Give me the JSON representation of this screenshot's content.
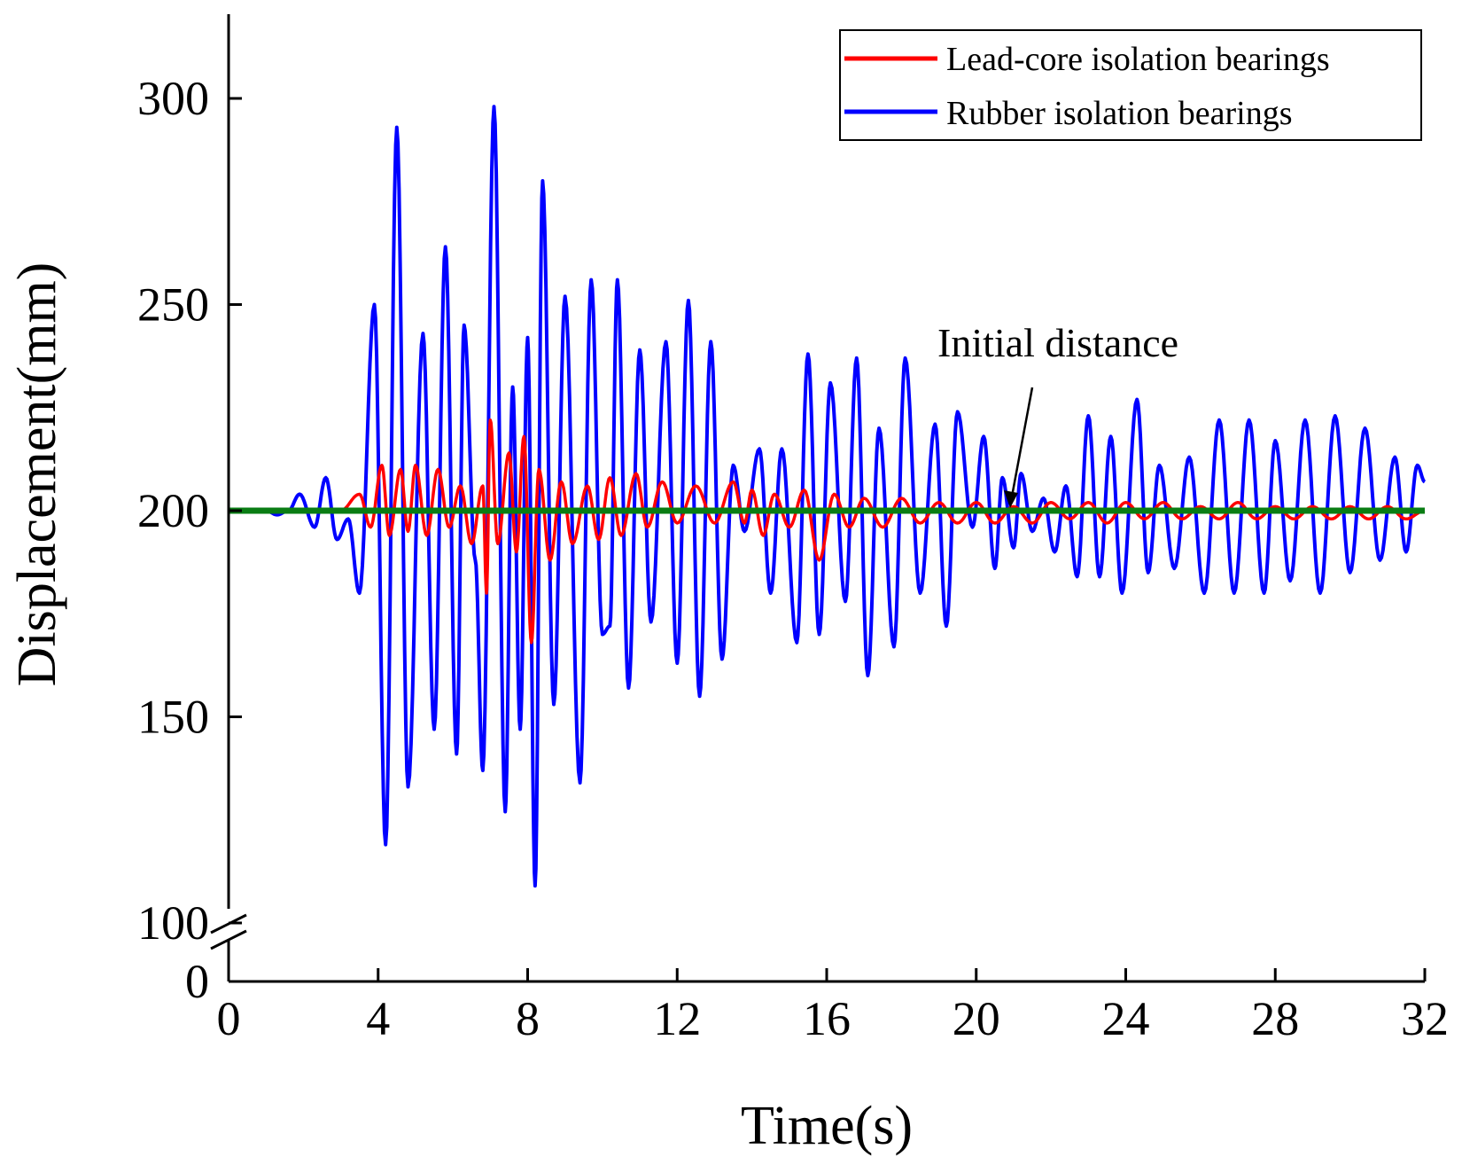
{
  "chart_data": {
    "type": "line",
    "title": "",
    "xlabel": "Time(s)",
    "ylabel": "Displacement(mm)",
    "xlim": [
      0,
      32
    ],
    "ylim_upper": [
      100,
      320
    ],
    "ylim_lower": [
      0,
      100
    ],
    "axis_break": "100 to 0",
    "x_ticks": [
      0,
      4,
      8,
      12,
      16,
      20,
      24,
      28,
      32
    ],
    "y_ticks": [
      300,
      250,
      200,
      150,
      100,
      0
    ],
    "x_tick_labels": [
      "0",
      "4",
      "8",
      "12",
      "16",
      "20",
      "24",
      "28",
      "32"
    ],
    "y_tick_labels": [
      "300",
      "250",
      "200",
      "150",
      "100",
      "0"
    ],
    "legend_position": "top-right",
    "series": [
      {
        "name": "Lead-core isolation bearings",
        "color": "#ff0000",
        "extremes": [
          [
            0.0,
            200
          ],
          [
            3.0,
            200
          ],
          [
            3.5,
            204
          ],
          [
            3.8,
            196
          ],
          [
            4.1,
            211
          ],
          [
            4.3,
            194
          ],
          [
            4.6,
            210
          ],
          [
            4.8,
            195
          ],
          [
            5.0,
            211
          ],
          [
            5.3,
            194
          ],
          [
            5.6,
            210
          ],
          [
            5.9,
            196
          ],
          [
            6.2,
            206
          ],
          [
            6.5,
            192
          ],
          [
            6.8,
            206
          ],
          [
            6.9,
            180
          ],
          [
            7.0,
            222
          ],
          [
            7.2,
            192
          ],
          [
            7.5,
            214
          ],
          [
            7.7,
            190
          ],
          [
            7.9,
            218
          ],
          [
            8.1,
            168
          ],
          [
            8.3,
            210
          ],
          [
            8.6,
            188
          ],
          [
            8.9,
            207
          ],
          [
            9.2,
            192
          ],
          [
            9.6,
            206
          ],
          [
            9.9,
            193
          ],
          [
            10.2,
            208
          ],
          [
            10.5,
            194
          ],
          [
            10.9,
            209
          ],
          [
            11.2,
            196
          ],
          [
            11.6,
            207
          ],
          [
            12.0,
            197
          ],
          [
            12.5,
            206
          ],
          [
            13.0,
            197
          ],
          [
            13.5,
            207
          ],
          [
            13.8,
            197
          ],
          [
            14.0,
            205
          ],
          [
            14.3,
            194
          ],
          [
            14.6,
            204
          ],
          [
            15.0,
            196
          ],
          [
            15.4,
            205
          ],
          [
            15.8,
            188
          ],
          [
            16.2,
            204
          ],
          [
            16.6,
            196
          ],
          [
            17.0,
            203
          ],
          [
            17.5,
            196
          ],
          [
            18.0,
            203
          ],
          [
            18.5,
            197
          ],
          [
            19.0,
            202
          ],
          [
            19.5,
            197
          ],
          [
            20.0,
            202
          ],
          [
            20.5,
            197
          ],
          [
            21.0,
            201
          ],
          [
            21.5,
            197
          ],
          [
            22.0,
            202
          ],
          [
            22.5,
            198
          ],
          [
            23.0,
            202
          ],
          [
            23.5,
            197
          ],
          [
            24.0,
            202
          ],
          [
            24.5,
            198
          ],
          [
            25.0,
            202
          ],
          [
            25.5,
            198
          ],
          [
            26.0,
            201
          ],
          [
            26.5,
            198
          ],
          [
            27.0,
            202
          ],
          [
            27.5,
            198
          ],
          [
            28.0,
            201
          ],
          [
            28.5,
            198
          ],
          [
            29.0,
            201
          ],
          [
            29.5,
            198
          ],
          [
            30.0,
            201
          ],
          [
            30.5,
            198
          ],
          [
            31.0,
            201
          ],
          [
            31.5,
            198
          ],
          [
            32.0,
            200
          ]
        ]
      },
      {
        "name": "Rubber isolation bearings",
        "color": "#0000ff",
        "extremes": [
          [
            0.0,
            200
          ],
          [
            1.0,
            200
          ],
          [
            1.3,
            199
          ],
          [
            1.6,
            200
          ],
          [
            1.9,
            204
          ],
          [
            2.3,
            196
          ],
          [
            2.6,
            208
          ],
          [
            2.9,
            193
          ],
          [
            3.2,
            198
          ],
          [
            3.5,
            180
          ],
          [
            3.9,
            250
          ],
          [
            4.2,
            119
          ],
          [
            4.5,
            293
          ],
          [
            4.8,
            133
          ],
          [
            5.2,
            243
          ],
          [
            5.5,
            147
          ],
          [
            5.8,
            264
          ],
          [
            6.1,
            141
          ],
          [
            6.3,
            245
          ],
          [
            6.6,
            188
          ],
          [
            6.8,
            137
          ],
          [
            7.1,
            298
          ],
          [
            7.4,
            127
          ],
          [
            7.6,
            230
          ],
          [
            7.8,
            147
          ],
          [
            8.0,
            242
          ],
          [
            8.2,
            109
          ],
          [
            8.4,
            280
          ],
          [
            8.7,
            153
          ],
          [
            9.0,
            252
          ],
          [
            9.4,
            134
          ],
          [
            9.7,
            256
          ],
          [
            10.0,
            170
          ],
          [
            10.2,
            172
          ],
          [
            10.4,
            256
          ],
          [
            10.7,
            157
          ],
          [
            11.0,
            239
          ],
          [
            11.3,
            173
          ],
          [
            11.7,
            241
          ],
          [
            12.0,
            163
          ],
          [
            12.3,
            251
          ],
          [
            12.6,
            155
          ],
          [
            12.9,
            241
          ],
          [
            13.2,
            164
          ],
          [
            13.5,
            211
          ],
          [
            13.8,
            195
          ],
          [
            14.2,
            215
          ],
          [
            14.5,
            180
          ],
          [
            14.8,
            215
          ],
          [
            15.2,
            168
          ],
          [
            15.5,
            238
          ],
          [
            15.8,
            170
          ],
          [
            16.1,
            231
          ],
          [
            16.5,
            178
          ],
          [
            16.8,
            237
          ],
          [
            17.1,
            160
          ],
          [
            17.4,
            220
          ],
          [
            17.8,
            167
          ],
          [
            18.1,
            237
          ],
          [
            18.5,
            180
          ],
          [
            18.9,
            221
          ],
          [
            19.2,
            172
          ],
          [
            19.5,
            224
          ],
          [
            19.9,
            196
          ],
          [
            20.2,
            218
          ],
          [
            20.5,
            186
          ],
          [
            20.7,
            208
          ],
          [
            21.0,
            191
          ],
          [
            21.2,
            209
          ],
          [
            21.5,
            195
          ],
          [
            21.8,
            203
          ],
          [
            22.1,
            190
          ],
          [
            22.4,
            206
          ],
          [
            22.7,
            184
          ],
          [
            23.0,
            223
          ],
          [
            23.3,
            184
          ],
          [
            23.6,
            218
          ],
          [
            23.9,
            180
          ],
          [
            24.3,
            227
          ],
          [
            24.6,
            185
          ],
          [
            24.9,
            211
          ],
          [
            25.3,
            186
          ],
          [
            25.7,
            213
          ],
          [
            26.1,
            180
          ],
          [
            26.5,
            222
          ],
          [
            26.9,
            180
          ],
          [
            27.3,
            222
          ],
          [
            27.7,
            180
          ],
          [
            28.0,
            217
          ],
          [
            28.4,
            183
          ],
          [
            28.8,
            222
          ],
          [
            29.2,
            180
          ],
          [
            29.6,
            223
          ],
          [
            30.0,
            185
          ],
          [
            30.4,
            220
          ],
          [
            30.8,
            188
          ],
          [
            31.2,
            213
          ],
          [
            31.5,
            190
          ],
          [
            31.8,
            211
          ],
          [
            32.0,
            207
          ]
        ]
      },
      {
        "name": "Initial distance",
        "color": "#0a7d14",
        "extremes": [
          [
            0.0,
            200
          ],
          [
            32.0,
            200
          ]
        ]
      }
    ],
    "annotation": {
      "text": "Initial distance",
      "points_to_x": 21,
      "points_to_y": 200
    }
  }
}
